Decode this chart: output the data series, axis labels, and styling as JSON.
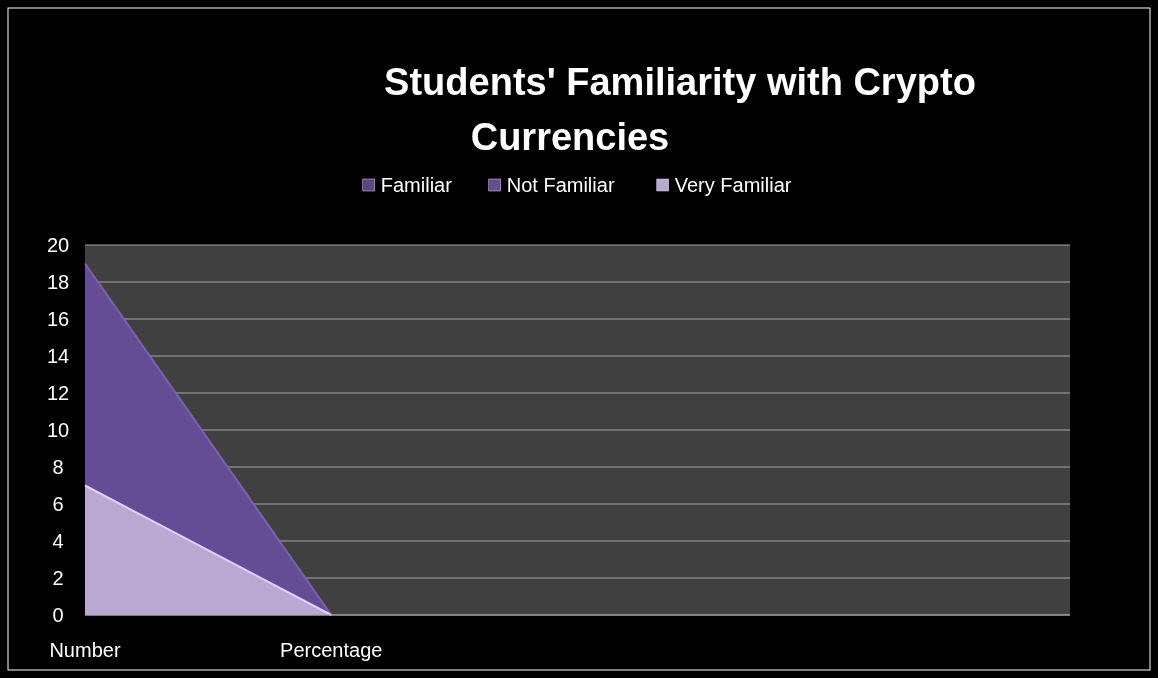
{
  "chart_data": {
    "type": "area",
    "title": "Students' Familiarity with Crypto Currencies",
    "categories": [
      "Number",
      "Percentage",
      null,
      null,
      null
    ],
    "series": [
      {
        "name": "Familiar",
        "color": "#5b4588",
        "values": [
          null,
          null,
          null,
          null,
          null
        ]
      },
      {
        "name": "Not Familiar",
        "color": "#654d96",
        "values": [
          19,
          0,
          null,
          null,
          null
        ]
      },
      {
        "name": "Very Familiar",
        "color": "#b8a8d2",
        "values": [
          7,
          0,
          null,
          null,
          null
        ]
      }
    ],
    "ylim": [
      0,
      20
    ],
    "yticks": [
      0,
      2,
      4,
      6,
      8,
      10,
      12,
      14,
      16,
      18,
      20
    ],
    "grid": "y",
    "legend": "top"
  }
}
